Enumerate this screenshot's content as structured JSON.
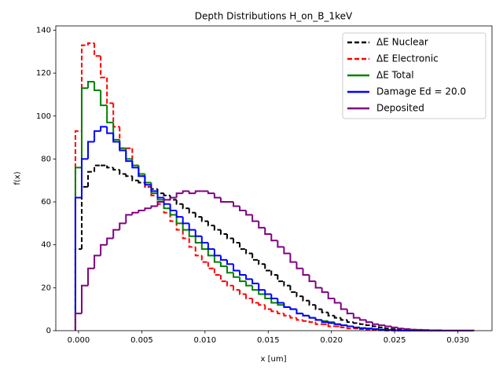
{
  "chart_data": {
    "type": "histogram-step",
    "title": "Depth Distributions H_on_B_1keV",
    "xlabel": "x [um]",
    "ylabel": "f(x)",
    "bins": [
      -0.00025,
      0.00025,
      0.00075,
      0.00125,
      0.00175,
      0.00225,
      0.00275,
      0.00325,
      0.00375,
      0.00425,
      0.00475,
      0.00525,
      0.00575,
      0.00625,
      0.00675,
      0.00725,
      0.00775,
      0.00825,
      0.00875,
      0.00925,
      0.00975,
      0.01025,
      0.01075,
      0.01125,
      0.01175,
      0.01225,
      0.01275,
      0.01325,
      0.01375,
      0.01425,
      0.01475,
      0.01525,
      0.01575,
      0.01625,
      0.01675,
      0.01725,
      0.01775,
      0.01825,
      0.01875,
      0.01925,
      0.01975,
      0.02025,
      0.02075,
      0.02125,
      0.02175,
      0.02225,
      0.02275,
      0.02325,
      0.02375,
      0.02425,
      0.02475,
      0.02525,
      0.02575,
      0.02625,
      0.02675,
      0.02725,
      0.02775,
      0.02825,
      0.02875,
      0.02925,
      0.02975,
      0.03025,
      0.03075,
      0.03125
    ],
    "series": [
      {
        "name": "ΔE Nuclear",
        "color": "#000000",
        "linestyle": "dashed",
        "values": [
          38,
          67,
          74,
          77,
          77,
          76,
          75,
          73,
          72,
          70,
          69,
          67,
          66,
          64,
          63,
          61,
          59,
          57,
          55,
          53,
          51,
          49,
          47,
          45,
          43,
          41,
          38,
          36,
          33,
          31,
          28,
          26,
          23,
          21,
          18,
          16,
          14,
          12,
          10,
          8.5,
          7,
          6,
          5,
          4,
          3.5,
          3,
          2.5,
          2,
          1.5,
          1,
          0.7,
          0.5,
          0.3,
          0,
          0,
          0,
          0,
          0,
          0,
          0,
          0,
          0,
          0
        ]
      },
      {
        "name": "ΔE Electronic",
        "color": "#ff0000",
        "linestyle": "dashed",
        "values": [
          93,
          133,
          134,
          128,
          118,
          106,
          95,
          85,
          85,
          77,
          72,
          67,
          63,
          59,
          55,
          51,
          47,
          43,
          39,
          35,
          32,
          29,
          26,
          23,
          21,
          19,
          17,
          15,
          13,
          12,
          10,
          9,
          8,
          7,
          6,
          5,
          4.5,
          4,
          3,
          3,
          2,
          2,
          1.5,
          1,
          1,
          0.7,
          0.5,
          0.3,
          0.2,
          0,
          0,
          0,
          0,
          0,
          0,
          0,
          0,
          0,
          0,
          0,
          0,
          0,
          0
        ]
      },
      {
        "name": "ΔE Total",
        "color": "#008000",
        "linestyle": "solid",
        "values": [
          76,
          113,
          116,
          112,
          105,
          97,
          89,
          85,
          80,
          77,
          73,
          69,
          64,
          61,
          57,
          54,
          50,
          47,
          44,
          41,
          38,
          35,
          32,
          30,
          27,
          25,
          23,
          21,
          19,
          17,
          15,
          13,
          12,
          11,
          10,
          8,
          7,
          6,
          5,
          4.5,
          4,
          3,
          2.5,
          2,
          1.5,
          1.2,
          1,
          0.7,
          0.5,
          0.3,
          0.2,
          0,
          0,
          0,
          0,
          0,
          0,
          0,
          0,
          0,
          0,
          0,
          0
        ]
      },
      {
        "name": "Damage Ed = 20.0",
        "color": "#0000ff",
        "linestyle": "solid",
        "values": [
          62,
          80,
          88,
          93,
          95,
          92,
          88,
          84,
          79,
          76,
          72,
          68,
          65,
          62,
          59,
          56,
          53,
          50,
          47,
          44,
          41,
          38,
          35,
          33,
          31,
          28,
          26,
          24,
          22,
          19,
          17,
          15,
          13,
          11,
          10,
          8,
          7,
          6,
          5,
          4,
          3.5,
          3,
          2.5,
          2,
          1.5,
          1.2,
          1,
          0.8,
          0.5,
          0.3,
          0.2,
          0,
          0,
          0,
          0,
          0,
          0,
          0,
          0,
          0,
          0,
          0,
          0
        ]
      },
      {
        "name": "Deposited",
        "color": "#800080",
        "linestyle": "solid",
        "values": [
          8,
          21,
          29,
          35,
          40,
          43,
          47,
          50,
          54,
          55,
          56,
          57,
          58,
          60,
          61,
          62,
          64,
          65,
          64,
          65,
          65,
          64,
          62,
          60,
          60,
          58,
          56,
          54,
          51,
          48,
          45,
          42,
          39,
          36,
          32,
          29,
          26,
          23,
          20,
          18,
          15,
          13,
          10,
          8,
          6,
          5,
          4,
          3,
          2.5,
          2,
          1.5,
          1,
          0.8,
          0.5,
          0.4,
          0.3,
          0.2,
          0.2,
          0.1,
          0.1,
          0.1,
          0.1,
          0.1
        ]
      }
    ],
    "xlim": [
      -0.0018,
      0.0327
    ],
    "ylim": [
      0,
      142
    ],
    "xticks": [
      {
        "value": 0,
        "label": "0.000"
      },
      {
        "value": 0.005,
        "label": "0.005"
      },
      {
        "value": 0.01,
        "label": "0.010"
      },
      {
        "value": 0.015,
        "label": "0.015"
      },
      {
        "value": 0.02,
        "label": "0.020"
      },
      {
        "value": 0.025,
        "label": "0.025"
      },
      {
        "value": 0.03,
        "label": "0.030"
      }
    ],
    "yticks": [
      0,
      20,
      40,
      60,
      80,
      100,
      120,
      140
    ],
    "legend": "upper right"
  }
}
